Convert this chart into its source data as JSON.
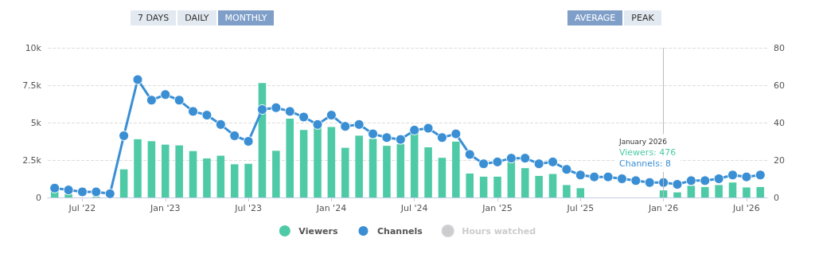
{
  "chart_data": {
    "type": "bar",
    "categories": [
      null,
      null,
      "Jul '22",
      null,
      null,
      null,
      null,
      null,
      "Jan '23",
      null,
      null,
      null,
      null,
      null,
      "Jul '23",
      null,
      null,
      null,
      null,
      null,
      "Jan '24",
      null,
      null,
      null,
      null,
      null,
      "Jul '24",
      null,
      null,
      null,
      null,
      null,
      "Jan '25",
      null,
      null,
      null,
      null,
      null,
      "Jul '25",
      null,
      null,
      null,
      null,
      null,
      "Jan '26",
      null,
      null,
      null,
      null,
      null,
      "Jul '26",
      null
    ],
    "series": [
      {
        "name": "Viewers",
        "color": "#4ecba6",
        "values": [
          460,
          210,
          null,
          50,
          null,
          1880,
          3890,
          3760,
          3530,
          3480,
          3100,
          2610,
          2790,
          2220,
          2250,
          7650,
          3120,
          5260,
          4510,
          4790,
          4710,
          3320,
          4130,
          3920,
          3450,
          3560,
          4380,
          3350,
          2650,
          3730,
          1600,
          1390,
          1390,
          2500,
          1960,
          1440,
          1570,
          830,
          620,
          null,
          null,
          null,
          null,
          null,
          476,
          340,
          780,
          700,
          830,
          1000,
          670,
          700
        ]
      },
      {
        "name": "Channels",
        "type": "line",
        "axis": "y2",
        "color": "#3a8fd4",
        "values": [
          5,
          4,
          3,
          3,
          2,
          33,
          63,
          52,
          55,
          52,
          46,
          44,
          39,
          33,
          30,
          47,
          48,
          46,
          43,
          39,
          44,
          38,
          39,
          34,
          32,
          31,
          36,
          37,
          32,
          34,
          23,
          18,
          19,
          21,
          21,
          18,
          19,
          15,
          12,
          11,
          11,
          10,
          9,
          8,
          8,
          7,
          9,
          9,
          10,
          12,
          11,
          12
        ]
      },
      {
        "name": "Hours watched",
        "type": "line",
        "color": "#cccccc",
        "values": [
          null,
          null,
          null,
          null,
          null,
          null,
          null,
          null,
          null,
          null,
          null,
          null,
          null,
          null,
          null,
          null,
          null,
          null,
          null,
          null,
          null,
          null,
          null,
          null,
          null,
          null,
          null,
          null,
          null,
          null,
          null,
          null,
          null,
          null,
          null,
          null,
          null,
          null,
          null,
          null,
          null,
          null,
          null,
          null,
          null,
          null,
          null,
          null,
          null,
          null,
          null,
          null
        ]
      }
    ],
    "ylim": [
      0,
      10000
    ],
    "yticks": [
      0,
      {
        "value": 2500,
        "label": "2.5k"
      },
      {
        "value": 5000,
        "label": "5k"
      },
      {
        "value": 7500,
        "label": "7.5k"
      },
      {
        "value": 10000,
        "label": "10k"
      }
    ],
    "y2lim": [
      0,
      80
    ],
    "y2ticks": [
      0,
      20,
      40,
      60,
      80
    ],
    "grid": "y",
    "legend": "bottom",
    "marker": "circle",
    "line_style": "solid",
    "ref_lines": [
      {
        "axis": "x",
        "value": "Jan '26",
        "color": "#bbbbbb"
      }
    ],
    "annotations": [
      "7 DAYS",
      "DAILY",
      "MONTHLY",
      "AVERAGE",
      "PEAK",
      "January 2026",
      "Viewers: 476",
      "Channels: 8"
    ]
  }
}
